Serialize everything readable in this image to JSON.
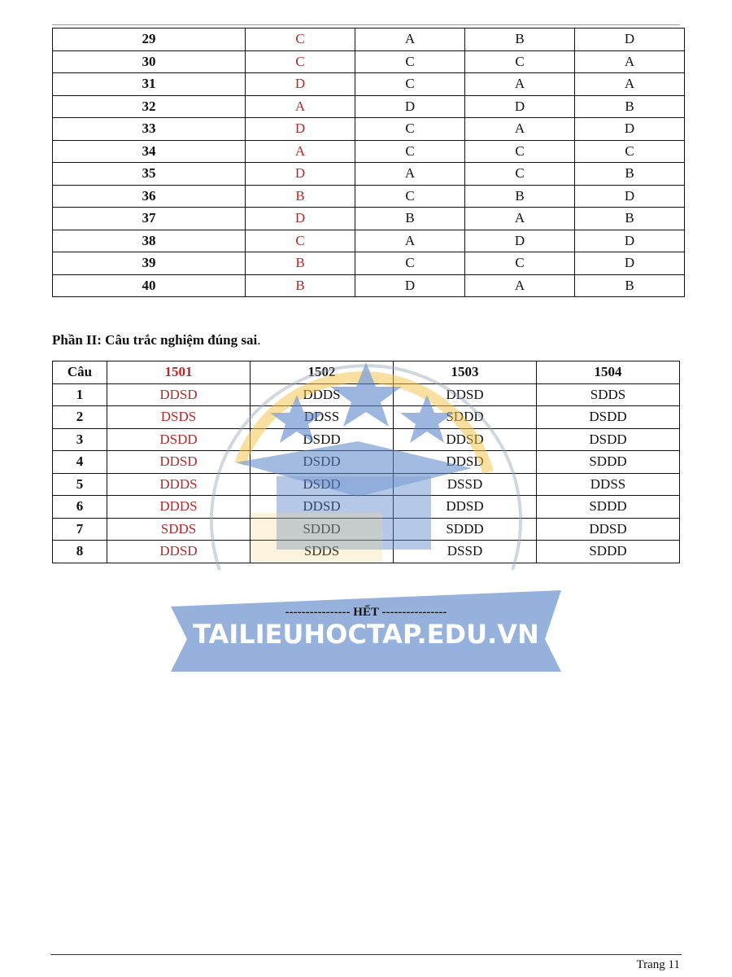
{
  "part1": {
    "rows": [
      [
        "29",
        "C",
        "A",
        "B",
        "D"
      ],
      [
        "30",
        "C",
        "C",
        "C",
        "A"
      ],
      [
        "31",
        "D",
        "C",
        "A",
        "A"
      ],
      [
        "32",
        "A",
        "D",
        "D",
        "B"
      ],
      [
        "33",
        "D",
        "C",
        "A",
        "D"
      ],
      [
        "34",
        "A",
        "C",
        "C",
        "C"
      ],
      [
        "35",
        "D",
        "A",
        "C",
        "B"
      ],
      [
        "36",
        "B",
        "C",
        "B",
        "D"
      ],
      [
        "37",
        "D",
        "B",
        "A",
        "B"
      ],
      [
        "38",
        "C",
        "A",
        "D",
        "D"
      ],
      [
        "39",
        "B",
        "C",
        "C",
        "D"
      ],
      [
        "40",
        "B",
        "D",
        "A",
        "B"
      ]
    ]
  },
  "part2": {
    "heading": "Phần II: Câu trắc nghiệm đúng sai",
    "heading_end": ".",
    "headers": [
      "Câu",
      "1501",
      "1502",
      "1503",
      "1504"
    ],
    "rows": [
      [
        "1",
        "DDSD",
        "DDDS",
        "DDSD",
        "SDDS"
      ],
      [
        "2",
        "DSDS",
        "DDSS",
        "SDDD",
        "DSDD"
      ],
      [
        "3",
        "DSDD",
        "DSDD",
        "DDSD",
        "DSDD"
      ],
      [
        "4",
        "DDSD",
        "DSDD",
        "DDSD",
        "SDDD"
      ],
      [
        "5",
        "DDDS",
        "DSDD",
        "DSSD",
        "DDSS"
      ],
      [
        "6",
        "DDDS",
        "DDSD",
        "DDSD",
        "SDDD"
      ],
      [
        "7",
        "SDDS",
        "SDDD",
        "SDDD",
        "DDSD"
      ],
      [
        "8",
        "DDSD",
        "SDDS",
        "DSSD",
        "SDDD"
      ]
    ]
  },
  "end_text": "---------------- HẾT ----------------",
  "watermark": {
    "text": "TAILIEUHOCTAP.EDU.VN",
    "colors": {
      "blue": "#5b86c9",
      "gold": "#f2c24a"
    }
  },
  "footer": {
    "page": "Trang 11"
  },
  "colors": {
    "answer_key": "#b22a2a"
  }
}
